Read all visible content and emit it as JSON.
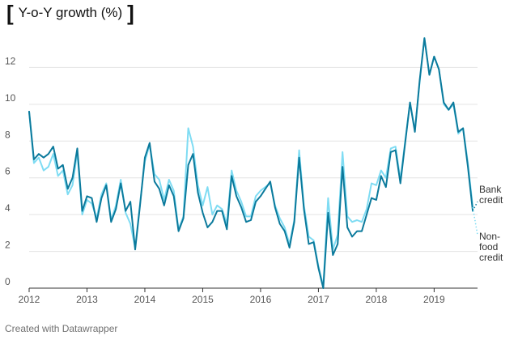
{
  "header": {
    "bracket_left": "[",
    "bracket_right": "]"
  },
  "footer": {
    "credit": "Created with Datawrapper"
  },
  "chart_data": {
    "type": "line",
    "title": "Y-o-Y growth (%)",
    "xlabel": "",
    "ylabel": "",
    "xlim": [
      2012.0,
      2019.75
    ],
    "ylim": [
      0,
      14
    ],
    "grid": true,
    "legend": "inline-right",
    "x_ticks": [
      {
        "value": 2012,
        "label": "2012"
      },
      {
        "value": 2013,
        "label": "2013"
      },
      {
        "value": 2014,
        "label": "2014"
      },
      {
        "value": 2015,
        "label": "2015"
      },
      {
        "value": 2016,
        "label": "2016"
      },
      {
        "value": 2017,
        "label": "2017"
      },
      {
        "value": 2018,
        "label": "2018"
      },
      {
        "value": 2019,
        "label": "2019"
      }
    ],
    "y_ticks": [
      {
        "value": 0,
        "label": "0"
      },
      {
        "value": 2,
        "label": "2"
      },
      {
        "value": 4,
        "label": "4"
      },
      {
        "value": 6,
        "label": "6"
      },
      {
        "value": 8,
        "label": "8"
      },
      {
        "value": 10,
        "label": "10"
      },
      {
        "value": 12,
        "label": "12"
      }
    ],
    "x": [
      2012.0,
      2012.083,
      2012.167,
      2012.25,
      2012.333,
      2012.417,
      2012.5,
      2012.583,
      2012.667,
      2012.75,
      2012.833,
      2012.917,
      2013.0,
      2013.083,
      2013.167,
      2013.25,
      2013.333,
      2013.417,
      2013.5,
      2013.583,
      2013.667,
      2013.75,
      2013.833,
      2013.917,
      2014.0,
      2014.083,
      2014.167,
      2014.25,
      2014.333,
      2014.417,
      2014.5,
      2014.583,
      2014.667,
      2014.75,
      2014.833,
      2014.917,
      2015.0,
      2015.083,
      2015.167,
      2015.25,
      2015.333,
      2015.417,
      2015.5,
      2015.583,
      2015.667,
      2015.75,
      2015.833,
      2015.917,
      2016.0,
      2016.083,
      2016.167,
      2016.25,
      2016.333,
      2016.417,
      2016.5,
      2016.583,
      2016.667,
      2016.75,
      2016.833,
      2016.917,
      2017.0,
      2017.083,
      2017.167,
      2017.25,
      2017.333,
      2017.417,
      2017.5,
      2017.583,
      2017.667,
      2017.75,
      2017.833,
      2017.917,
      2018.0,
      2018.083,
      2018.167,
      2018.25,
      2018.333,
      2018.417,
      2018.5,
      2018.583,
      2018.667,
      2018.75,
      2018.833,
      2018.917,
      2019.0,
      2019.083,
      2019.167,
      2019.25,
      2019.333,
      2019.417,
      2019.5,
      2019.583,
      2019.667
    ],
    "series": [
      {
        "name": "Bank credit",
        "color": "#0b7a9c",
        "values": [
          9.6,
          7.0,
          7.3,
          7.1,
          7.3,
          7.7,
          6.5,
          6.7,
          5.4,
          6.0,
          7.6,
          4.2,
          5.0,
          4.9,
          3.6,
          4.9,
          5.6,
          3.6,
          4.3,
          5.7,
          4.2,
          4.7,
          2.1,
          4.5,
          7.1,
          7.9,
          5.8,
          5.4,
          4.5,
          5.6,
          5.0,
          3.1,
          3.8,
          6.7,
          7.3,
          5.2,
          4.1,
          3.3,
          3.6,
          4.2,
          4.2,
          3.2,
          6.1,
          5.0,
          4.4,
          3.6,
          3.7,
          4.7,
          5.0,
          5.4,
          5.8,
          4.4,
          3.5,
          3.1,
          2.2,
          3.6,
          7.1,
          4.3,
          2.4,
          2.5,
          1.1,
          0.0,
          4.1,
          1.8,
          2.4,
          6.6,
          3.3,
          2.8,
          3.1,
          3.1,
          4.0,
          4.9,
          4.8,
          6.1,
          5.5,
          7.4,
          7.5,
          5.7,
          7.9,
          10.1,
          8.5,
          11.3,
          13.6,
          11.6,
          12.6,
          11.9,
          10.1,
          9.7,
          10.1,
          8.5,
          8.7,
          6.6,
          4.2
        ]
      },
      {
        "name": "Non-food credit",
        "color": "#7fdcf3",
        "values": [
          9.6,
          6.8,
          7.1,
          6.4,
          6.6,
          7.3,
          6.1,
          6.4,
          5.1,
          5.6,
          7.4,
          4.0,
          4.8,
          4.6,
          3.8,
          5.1,
          5.7,
          3.7,
          4.5,
          5.9,
          4.1,
          3.5,
          2.2,
          4.6,
          6.9,
          7.8,
          6.2,
          5.9,
          4.8,
          5.9,
          5.3,
          3.2,
          3.9,
          8.7,
          7.7,
          5.6,
          4.5,
          5.5,
          4.0,
          4.5,
          4.3,
          3.5,
          6.4,
          5.3,
          4.7,
          3.9,
          3.9,
          5.0,
          5.3,
          5.5,
          5.7,
          4.5,
          3.8,
          3.3,
          2.4,
          3.7,
          7.5,
          4.5,
          2.8,
          2.6,
          1.2,
          0.1,
          4.9,
          2.1,
          2.9,
          7.4,
          3.9,
          3.6,
          3.7,
          3.6,
          4.3,
          5.7,
          5.6,
          6.4,
          6.0,
          7.6,
          7.7,
          5.9,
          8.0,
          10.1,
          8.6,
          11.2,
          13.6,
          11.6,
          12.6,
          11.9,
          10.0,
          9.7,
          10.0,
          8.4,
          8.7,
          6.8,
          4.4
        ]
      }
    ],
    "end_tails": [
      {
        "series": "Bank credit",
        "x_end": 2019.75,
        "y_end": 4.7
      },
      {
        "series": "Non-food credit",
        "x_end": 2019.75,
        "y_end": 2.9
      }
    ],
    "labels": [
      {
        "series": "Bank credit",
        "lines": [
          "Bank",
          "credit"
        ]
      },
      {
        "series": "Non-food credit",
        "lines": [
          "Non-",
          "food",
          "credit"
        ]
      }
    ]
  }
}
